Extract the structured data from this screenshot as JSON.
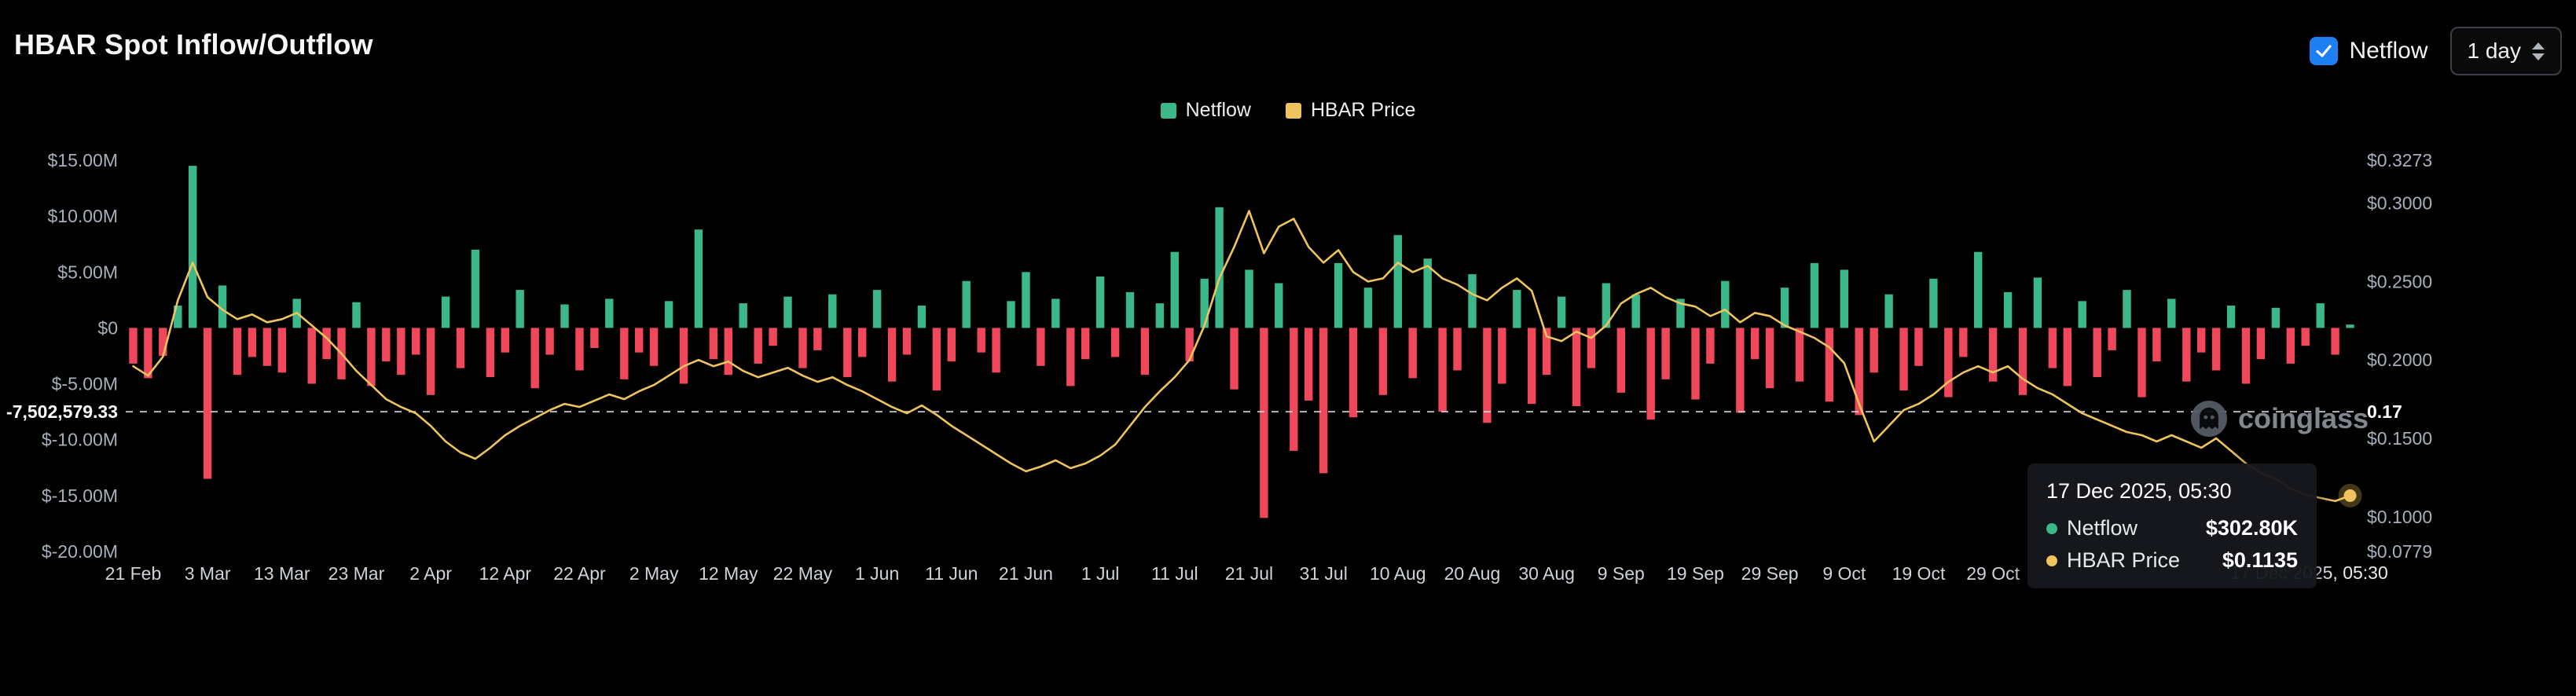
{
  "header": {
    "title": "HBAR Spot Inflow/Outflow"
  },
  "controls": {
    "netflow_checkbox_label": "Netflow",
    "netflow_checked": true,
    "interval_selected": "1 day",
    "accent_blue": "#1E7FF2"
  },
  "legend": [
    {
      "label": "Netflow",
      "color": "#3AB88A"
    },
    {
      "label": "HBAR Price",
      "color": "#EFC45E"
    }
  ],
  "watermark": {
    "text": "coinglass"
  },
  "tooltip": {
    "date": "17 Dec 2025, 05:30",
    "rows": [
      {
        "label": "Netflow",
        "value": "$302.80K",
        "color": "#3AB88A"
      },
      {
        "label": "HBAR Price",
        "value": "$0.1135",
        "color": "#EFC45E"
      }
    ]
  },
  "crosshair_x_label": "17 Dec 2025, 05:30",
  "annotation": {
    "left_label": "-7,502,579.33",
    "right_label": "0.17",
    "netflow_value_musd": -7.502579
  },
  "chart_data": {
    "type": "bar",
    "title": "HBAR Spot Inflow/Outflow",
    "start_date": "21 Feb",
    "end_date": "17 Dec 2025",
    "sample_interval_days": 2,
    "x_ticks": [
      "21 Feb",
      "3 Mar",
      "13 Mar",
      "23 Mar",
      "2 Apr",
      "12 Apr",
      "22 Apr",
      "2 May",
      "12 May",
      "22 May",
      "1 Jun",
      "11 Jun",
      "21 Jun",
      "1 Jul",
      "11 Jul",
      "21 Jul",
      "31 Jul",
      "10 Aug",
      "20 Aug",
      "30 Aug",
      "9 Sep",
      "19 Sep",
      "29 Sep",
      "9 Oct",
      "19 Oct",
      "29 Oct"
    ],
    "x_tick_every_n_points": 5,
    "left_axis": {
      "unit": "USD millions",
      "min": -20,
      "max": 15,
      "ticks": [
        {
          "v": 15,
          "label": "$15.00M"
        },
        {
          "v": 10,
          "label": "$10.00M"
        },
        {
          "v": 5,
          "label": "$5.00M"
        },
        {
          "v": 0,
          "label": "$0"
        },
        {
          "v": -5,
          "label": "$-5.00M"
        },
        {
          "v": -10,
          "label": "$-10.00M"
        },
        {
          "v": -15,
          "label": "$-15.00M"
        },
        {
          "v": -20,
          "label": "$-20.00M"
        }
      ]
    },
    "right_axis": {
      "unit": "USD",
      "min": 0.0779,
      "max": 0.3273,
      "ticks": [
        {
          "v": 0.3273,
          "label": "$0.3273"
        },
        {
          "v": 0.3,
          "label": "$0.3000"
        },
        {
          "v": 0.25,
          "label": "$0.2500"
        },
        {
          "v": 0.2,
          "label": "$0.2000"
        },
        {
          "v": 0.15,
          "label": "$0.1500"
        },
        {
          "v": 0.1,
          "label": "$0.1000"
        },
        {
          "v": 0.0779,
          "label": "$0.0779"
        }
      ]
    },
    "series": [
      {
        "name": "Netflow",
        "type": "bar",
        "unit": "$M",
        "color_positive": "#3AB88A",
        "color_negative": "#F0485A",
        "values": [
          -3.2,
          -4.5,
          -2.5,
          2.0,
          14.5,
          -13.5,
          3.8,
          -4.2,
          -2.6,
          -3.4,
          -4.0,
          2.6,
          -5.0,
          -2.8,
          -4.6,
          2.3,
          -5.2,
          -3.0,
          -4.2,
          -2.4,
          -6.0,
          2.8,
          -3.6,
          7.0,
          -4.4,
          -2.2,
          3.4,
          -5.4,
          -2.4,
          2.1,
          -3.8,
          -1.8,
          2.6,
          -4.6,
          -2.2,
          -3.4,
          2.4,
          -5.0,
          8.8,
          -2.8,
          -4.2,
          2.2,
          -3.2,
          -1.6,
          2.8,
          -3.6,
          -2.0,
          3.0,
          -4.4,
          -2.6,
          3.4,
          -4.8,
          -2.4,
          2.0,
          -5.6,
          -3.0,
          4.2,
          -2.2,
          -4.0,
          2.4,
          5.0,
          -3.4,
          2.6,
          -5.2,
          -2.8,
          4.6,
          -2.6,
          3.2,
          -4.2,
          2.2,
          6.8,
          -3.0,
          4.4,
          10.8,
          -5.5,
          5.2,
          -17.0,
          4.0,
          -11.0,
          -6.5,
          -13.0,
          5.8,
          -8.0,
          3.6,
          -6.0,
          8.3,
          -4.5,
          6.2,
          -7.5,
          -3.8,
          4.8,
          -8.5,
          -5.0,
          3.4,
          -6.8,
          -4.2,
          2.8,
          -7.0,
          -3.6,
          4.0,
          -5.8,
          3.0,
          -8.2,
          -4.6,
          2.6,
          -6.4,
          -3.2,
          4.2,
          -7.6,
          -2.8,
          -5.4,
          3.6,
          -4.8,
          5.8,
          -6.6,
          5.2,
          -7.8,
          -4.0,
          3.0,
          -5.6,
          -3.4,
          4.4,
          -6.2,
          -2.6,
          6.8,
          -4.8,
          3.2,
          -6.0,
          4.5,
          -3.6,
          -5.2,
          2.4,
          -4.4,
          -2.0,
          3.4,
          -6.2,
          -3.0,
          2.6,
          -4.8,
          -2.2,
          -3.8,
          2.0,
          -5.0,
          -2.8,
          1.8,
          -3.2,
          -1.6,
          2.2,
          -2.4,
          0.3
        ]
      },
      {
        "name": "HBAR Price",
        "type": "line",
        "unit": "$",
        "color": "#EFC45E",
        "values": [
          0.196,
          0.19,
          0.202,
          0.238,
          0.262,
          0.24,
          0.232,
          0.226,
          0.229,
          0.224,
          0.226,
          0.23,
          0.222,
          0.214,
          0.204,
          0.193,
          0.184,
          0.175,
          0.17,
          0.166,
          0.158,
          0.148,
          0.141,
          0.137,
          0.144,
          0.152,
          0.158,
          0.163,
          0.168,
          0.172,
          0.17,
          0.174,
          0.178,
          0.175,
          0.18,
          0.184,
          0.19,
          0.196,
          0.2,
          0.196,
          0.199,
          0.193,
          0.189,
          0.192,
          0.195,
          0.19,
          0.186,
          0.189,
          0.184,
          0.18,
          0.175,
          0.17,
          0.166,
          0.171,
          0.165,
          0.158,
          0.152,
          0.146,
          0.14,
          0.134,
          0.129,
          0.132,
          0.136,
          0.131,
          0.134,
          0.139,
          0.146,
          0.158,
          0.17,
          0.18,
          0.189,
          0.2,
          0.222,
          0.252,
          0.272,
          0.295,
          0.268,
          0.285,
          0.29,
          0.272,
          0.262,
          0.27,
          0.256,
          0.25,
          0.252,
          0.262,
          0.256,
          0.26,
          0.252,
          0.248,
          0.242,
          0.238,
          0.246,
          0.252,
          0.244,
          0.215,
          0.212,
          0.218,
          0.214,
          0.222,
          0.236,
          0.242,
          0.246,
          0.24,
          0.236,
          0.234,
          0.228,
          0.232,
          0.224,
          0.23,
          0.228,
          0.222,
          0.218,
          0.214,
          0.208,
          0.198,
          0.172,
          0.148,
          0.158,
          0.168,
          0.172,
          0.178,
          0.186,
          0.192,
          0.196,
          0.192,
          0.196,
          0.188,
          0.182,
          0.178,
          0.172,
          0.166,
          0.162,
          0.158,
          0.154,
          0.152,
          0.148,
          0.152,
          0.148,
          0.144,
          0.15,
          0.142,
          0.134,
          0.128,
          0.124,
          0.118,
          0.114,
          0.112,
          0.11,
          0.1135
        ]
      }
    ],
    "last_point": {
      "date": "17 Dec 2025, 05:30",
      "netflow": "$302.80K",
      "price": "$0.1135"
    },
    "grid": false,
    "legend_position": "top-center"
  }
}
